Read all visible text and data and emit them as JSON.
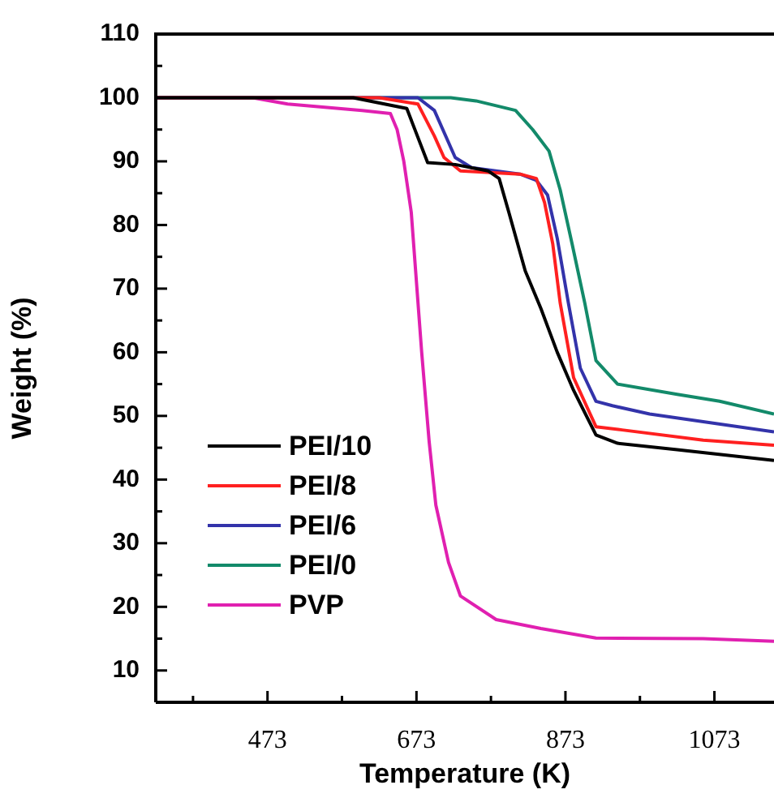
{
  "chart_data": {
    "type": "line",
    "xlabel": "Temperature (K)",
    "ylabel": "Weight (%)",
    "xlim": [
      323,
      1153
    ],
    "ylim": [
      5,
      110
    ],
    "xticks": [
      {
        "value": 373,
        "label": null
      },
      473,
      {
        "value": 573,
        "label": null
      },
      673,
      {
        "value": 773,
        "label": null
      },
      873,
      {
        "value": 973,
        "label": null
      },
      1073
    ],
    "yticks": [
      10,
      {
        "value": 15,
        "label": null
      },
      20,
      {
        "value": 25,
        "label": null
      },
      30,
      {
        "value": 35,
        "label": null
      },
      40,
      {
        "value": 45,
        "label": null
      },
      50,
      {
        "value": 55,
        "label": null
      },
      60,
      {
        "value": 65,
        "label": null
      },
      70,
      {
        "value": 75,
        "label": null
      },
      80,
      {
        "value": 85,
        "label": null
      },
      90,
      {
        "value": 95,
        "label": null
      },
      100,
      {
        "value": 105,
        "label": null
      },
      110
    ],
    "grid": false,
    "legend": "bottom left",
    "marker": "none",
    "line_style": "solid",
    "series": [
      {
        "name": "PEI/10",
        "color": "#000000",
        "x": [
          323,
          588,
          660,
          688,
          725,
          769,
          784,
          797,
          819,
          840,
          862,
          884,
          914,
          943,
          1023,
          1153
        ],
        "values": [
          100,
          100,
          98.3,
          89.8,
          89.5,
          88.5,
          87.3,
          82,
          72.8,
          66.9,
          60,
          54,
          47,
          45.7,
          44.7,
          43
        ]
      },
      {
        "name": "PEI/8",
        "color": "#ff2020",
        "x": [
          323,
          623,
          675,
          697,
          710,
          732,
          812,
          834,
          845,
          856,
          866,
          884,
          914,
          949,
          1058,
          1153
        ],
        "values": [
          100,
          100,
          99,
          94,
          90.6,
          88.5,
          88,
          87.3,
          83.5,
          77,
          67.7,
          56,
          48.3,
          47.8,
          46.2,
          45.4
        ]
      },
      {
        "name": "PEI/6",
        "color": "#3333aa",
        "x": [
          323,
          675,
          697,
          725,
          747,
          812,
          834,
          849,
          862,
          877,
          893,
          914,
          936,
          986,
          1153
        ],
        "values": [
          100,
          100,
          98,
          90.6,
          89,
          88,
          87,
          84.7,
          77.9,
          67.7,
          57.5,
          52.3,
          51.6,
          50.3,
          47.5
        ]
      },
      {
        "name": "PEI/0",
        "color": "#138a6a",
        "x": [
          323,
          719,
          753,
          806,
          829,
          851,
          866,
          882,
          899,
          914,
          943,
          1023,
          1080,
          1153
        ],
        "values": [
          100,
          100,
          99.5,
          98,
          95,
          91.6,
          85.5,
          77,
          67.7,
          58.7,
          55,
          53.4,
          52.3,
          50.3
        ]
      },
      {
        "name": "PVP",
        "color": "#e020b0",
        "x": [
          323,
          453,
          500,
          600,
          638,
          647,
          656,
          666,
          680,
          690,
          699,
          716,
          732,
          780,
          840,
          914,
          1058,
          1153
        ],
        "values": [
          100,
          100,
          99,
          98,
          97.5,
          95,
          90,
          82,
          60,
          46,
          36,
          27,
          21.7,
          18,
          16.6,
          15.1,
          15,
          14.6
        ]
      }
    ]
  }
}
